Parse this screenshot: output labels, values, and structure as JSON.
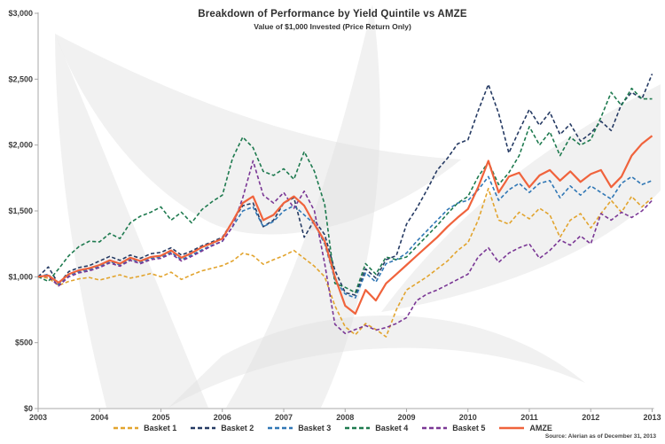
{
  "header": {
    "title": "Breakdown of Performance by Yield Quintile vs AMZE",
    "subtitle": "Value of $1,000 Invested (Price Return Only)"
  },
  "footer": {
    "source": "Source: Alerian as of December 31, 2013"
  },
  "chart_data": {
    "type": "line",
    "title": "Breakdown of Performance by Yield Quintile vs AMZE",
    "subtitle": "Value of $1,000 Invested (Price Return Only)",
    "grid": "off",
    "legend_position": "bottom-center",
    "x_axis": {
      "tick_labels": [
        "2003",
        "2004",
        "2005",
        "2006",
        "2007",
        "2008",
        "2009",
        "2010",
        "2011",
        "2012",
        "2013"
      ],
      "start_year": 2003,
      "end_year": 2013,
      "points_per_year": 6
    },
    "y_axis": {
      "tick_labels": [
        "$0",
        "$500",
        "$1,000",
        "$1,500",
        "$2,000",
        "$2,500",
        "$3,000"
      ],
      "tick_values": [
        0,
        500,
        1000,
        1500,
        2000,
        2500,
        3000
      ],
      "min": 0,
      "max": 3000
    },
    "series": [
      {
        "name": "Basket 1",
        "color": "#e2a42e",
        "style": "dashed",
        "values": [
          1000,
          990,
          935,
          965,
          985,
          995,
          975,
          995,
          1015,
          990,
          1005,
          1025,
          1000,
          1035,
          980,
          1015,
          1045,
          1065,
          1085,
          1120,
          1180,
          1160,
          1095,
          1130,
          1160,
          1200,
          1140,
          1080,
          1000,
          780,
          620,
          560,
          645,
          600,
          545,
          750,
          900,
          950,
          1000,
          1060,
          1120,
          1200,
          1260,
          1430,
          1670,
          1430,
          1400,
          1490,
          1440,
          1520,
          1470,
          1300,
          1430,
          1480,
          1370,
          1480,
          1580,
          1490,
          1610,
          1530,
          1600
        ]
      },
      {
        "name": "Basket 2",
        "color": "#253a63",
        "style": "dashed",
        "values": [
          1000,
          1075,
          945,
          1040,
          1070,
          1085,
          1120,
          1155,
          1125,
          1165,
          1140,
          1175,
          1185,
          1220,
          1165,
          1195,
          1235,
          1265,
          1300,
          1420,
          1540,
          1560,
          1380,
          1430,
          1560,
          1600,
          1300,
          1430,
          1320,
          1050,
          880,
          860,
          1060,
          990,
          1130,
          1160,
          1400,
          1520,
          1660,
          1810,
          1900,
          2010,
          2040,
          2260,
          2460,
          2240,
          1940,
          2110,
          2270,
          2150,
          2250,
          2080,
          2160,
          2030,
          2090,
          2180,
          2110,
          2310,
          2400,
          2350,
          2540
        ]
      },
      {
        "name": "Basket 3",
        "color": "#3077b5",
        "style": "dashed",
        "values": [
          1000,
          1020,
          940,
          1010,
          1040,
          1055,
          1080,
          1115,
          1090,
          1135,
          1110,
          1140,
          1150,
          1185,
          1130,
          1165,
          1205,
          1240,
          1270,
          1380,
          1500,
          1530,
          1380,
          1420,
          1500,
          1540,
          1470,
          1400,
          1250,
          980,
          870,
          840,
          1030,
          960,
          1100,
          1130,
          1180,
          1270,
          1350,
          1430,
          1510,
          1560,
          1580,
          1660,
          1760,
          1580,
          1660,
          1710,
          1640,
          1710,
          1730,
          1600,
          1690,
          1620,
          1690,
          1640,
          1590,
          1710,
          1760,
          1700,
          1730
        ]
      },
      {
        "name": "Basket 4",
        "color": "#1e7a4f",
        "style": "dashed",
        "values": [
          1000,
          965,
          1060,
          1160,
          1230,
          1270,
          1265,
          1330,
          1290,
          1410,
          1460,
          1490,
          1530,
          1430,
          1490,
          1410,
          1510,
          1570,
          1620,
          1900,
          2060,
          1980,
          1800,
          1770,
          1820,
          1740,
          1950,
          1800,
          1550,
          950,
          920,
          880,
          1100,
          1020,
          1150,
          1130,
          1150,
          1230,
          1310,
          1390,
          1480,
          1560,
          1610,
          1760,
          1870,
          1700,
          1790,
          1920,
          2140,
          2000,
          2100,
          1920,
          2060,
          2000,
          2040,
          2210,
          2400,
          2300,
          2430,
          2350,
          2350
        ]
      },
      {
        "name": "Basket 5",
        "color": "#7a3795",
        "style": "dashed",
        "values": [
          1000,
          1005,
          930,
          1000,
          1030,
          1045,
          1070,
          1105,
          1080,
          1125,
          1100,
          1130,
          1140,
          1175,
          1120,
          1155,
          1195,
          1235,
          1270,
          1380,
          1600,
          1880,
          1620,
          1560,
          1640,
          1520,
          1650,
          1500,
          1100,
          640,
          570,
          600,
          630,
          595,
          615,
          645,
          690,
          820,
          870,
          900,
          940,
          980,
          1020,
          1150,
          1220,
          1110,
          1180,
          1220,
          1250,
          1140,
          1200,
          1280,
          1240,
          1310,
          1250,
          1480,
          1430,
          1490,
          1450,
          1500,
          1580
        ]
      },
      {
        "name": "AMZE",
        "color": "#f0633c",
        "style": "solid",
        "values": [
          1000,
          1010,
          955,
          1020,
          1050,
          1065,
          1090,
          1125,
          1100,
          1145,
          1120,
          1150,
          1160,
          1200,
          1145,
          1180,
          1225,
          1255,
          1290,
          1420,
          1560,
          1610,
          1430,
          1470,
          1560,
          1610,
          1540,
          1400,
          1270,
          1000,
          780,
          720,
          900,
          820,
          950,
          1020,
          1090,
          1160,
          1230,
          1300,
          1380,
          1450,
          1515,
          1680,
          1880,
          1640,
          1760,
          1790,
          1680,
          1770,
          1810,
          1730,
          1800,
          1720,
          1780,
          1810,
          1680,
          1760,
          1920,
          2010,
          2070
        ]
      }
    ]
  }
}
